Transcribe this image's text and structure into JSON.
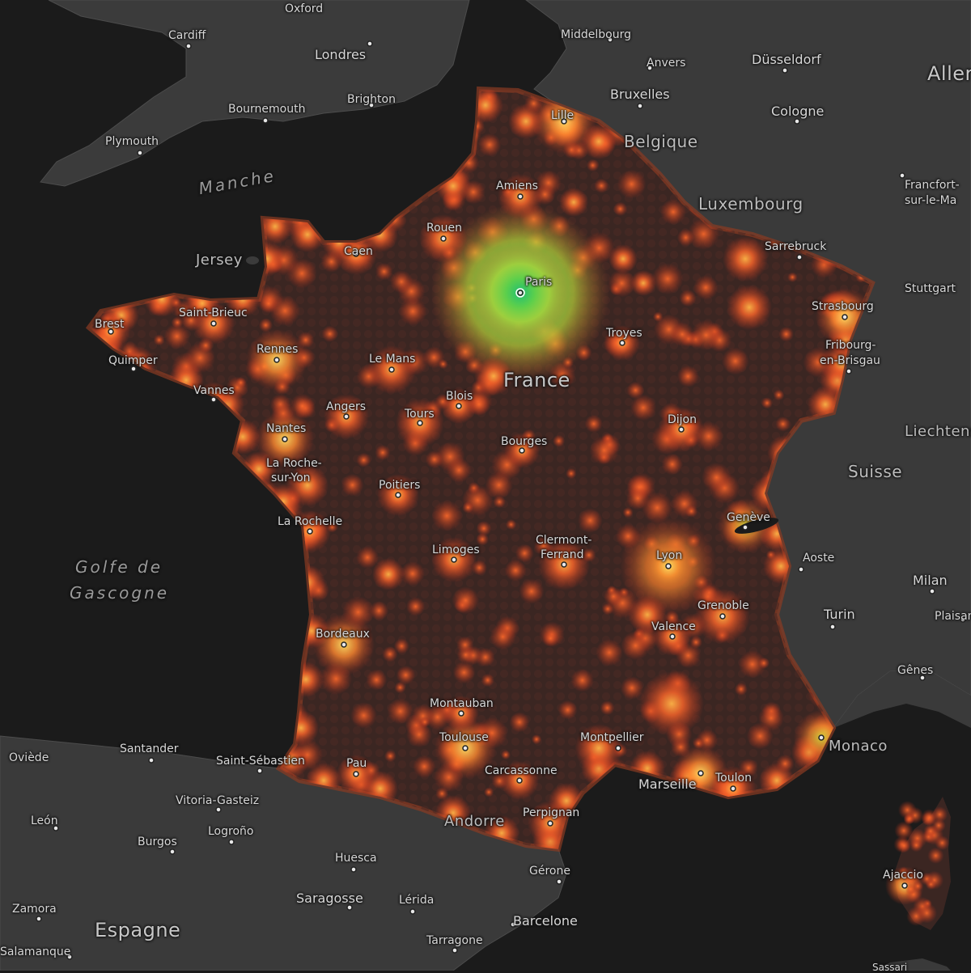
{
  "map": {
    "colors": {
      "sea": "#1b1b1b",
      "land": "#3a3a3a",
      "france_base": "#3b2622",
      "heat_low": "#c8321e",
      "heat_mid": "#f5642a",
      "heat_high": "#9ad13a",
      "heat_peak": "#2fc36b",
      "road": "#4a4a4a",
      "border": "#5a5a5a"
    },
    "countries": {
      "france": "France",
      "belgique": "Belgique",
      "luxembourg": "Luxembourg",
      "suisse": "Suisse",
      "espagne": "Espagne",
      "allemagne": "Aller",
      "andorre": "Andorre",
      "monaco": "Monaco",
      "liechtenstein": "Liechtens",
      "jersey": "Jersey"
    },
    "seas": {
      "manche": "Manche",
      "gascogne_1": "Golfe de",
      "gascogne_2": "Gascogne"
    },
    "cities": {
      "oxford": "Oxford",
      "cardiff": "Cardiff",
      "londres": "Londres",
      "bournemouth": "Bournemouth",
      "brighton": "Brighton",
      "plymouth": "Plymouth",
      "middelbourg": "Middelbourg",
      "anvers": "Anvers",
      "dusseldorf": "Düsseldorf",
      "bruxelles": "Bruxelles",
      "cologne": "Cologne",
      "lille": "Lille",
      "amiens": "Amiens",
      "francfort_1": "Francfort-",
      "francfort_2": "sur-le-Ma",
      "rouen": "Rouen",
      "caen": "Caen",
      "sarrebruck": "Sarrebruck",
      "paris": "Paris",
      "stuttgart": "Stuttgart",
      "brest": "Brest",
      "saint_brieuc": "Saint-Brieuc",
      "strasbourg": "Strasbourg",
      "troyes": "Troyes",
      "quimper": "Quimper",
      "rennes": "Rennes",
      "le_mans": "Le Mans",
      "fribourg_1": "Fribourg-",
      "fribourg_2": "en-Brisgau",
      "vannes": "Vannes",
      "blois": "Blois",
      "angers": "Angers",
      "tours": "Tours",
      "dijon": "Dijon",
      "nantes": "Nantes",
      "bourges": "Bourges",
      "la_roche_1": "La Roche-",
      "la_roche_2": "sur-Yon",
      "poitiers": "Poitiers",
      "geneve": "Genève",
      "la_rochelle": "La Rochelle",
      "clermont_1": "Clermont-",
      "clermont_2": "Ferrand",
      "limoges": "Limoges",
      "lyon": "Lyon",
      "aoste": "Aoste",
      "milan": "Milan",
      "grenoble": "Grenoble",
      "turin": "Turin",
      "plaisance": "Plaisan",
      "valence": "Valence",
      "bordeaux": "Bordeaux",
      "genes": "Gênes",
      "montauban": "Montauban",
      "toulouse": "Toulouse",
      "montpellier": "Montpellier",
      "oviede": "Oviède",
      "santander": "Santander",
      "saint_sebastien": "Saint-Sébastien",
      "pau": "Pau",
      "carcassonne": "Carcassonne",
      "marseille": "Marseille",
      "toulon": "Toulon",
      "vitoria": "Vitoria-Gasteiz",
      "perpignan": "Perpignan",
      "leon": "León",
      "logrono": "Logroño",
      "burgos": "Burgos",
      "huesca": "Huesca",
      "gerone": "Gérone",
      "ajaccio": "Ajaccio",
      "saragosse": "Saragosse",
      "lerida": "Lérida",
      "zamora": "Zamora",
      "barcelone": "Barcelone",
      "tarragone": "Tarragone",
      "salamanque": "Salamanque",
      "sassari": "Sassari"
    }
  }
}
